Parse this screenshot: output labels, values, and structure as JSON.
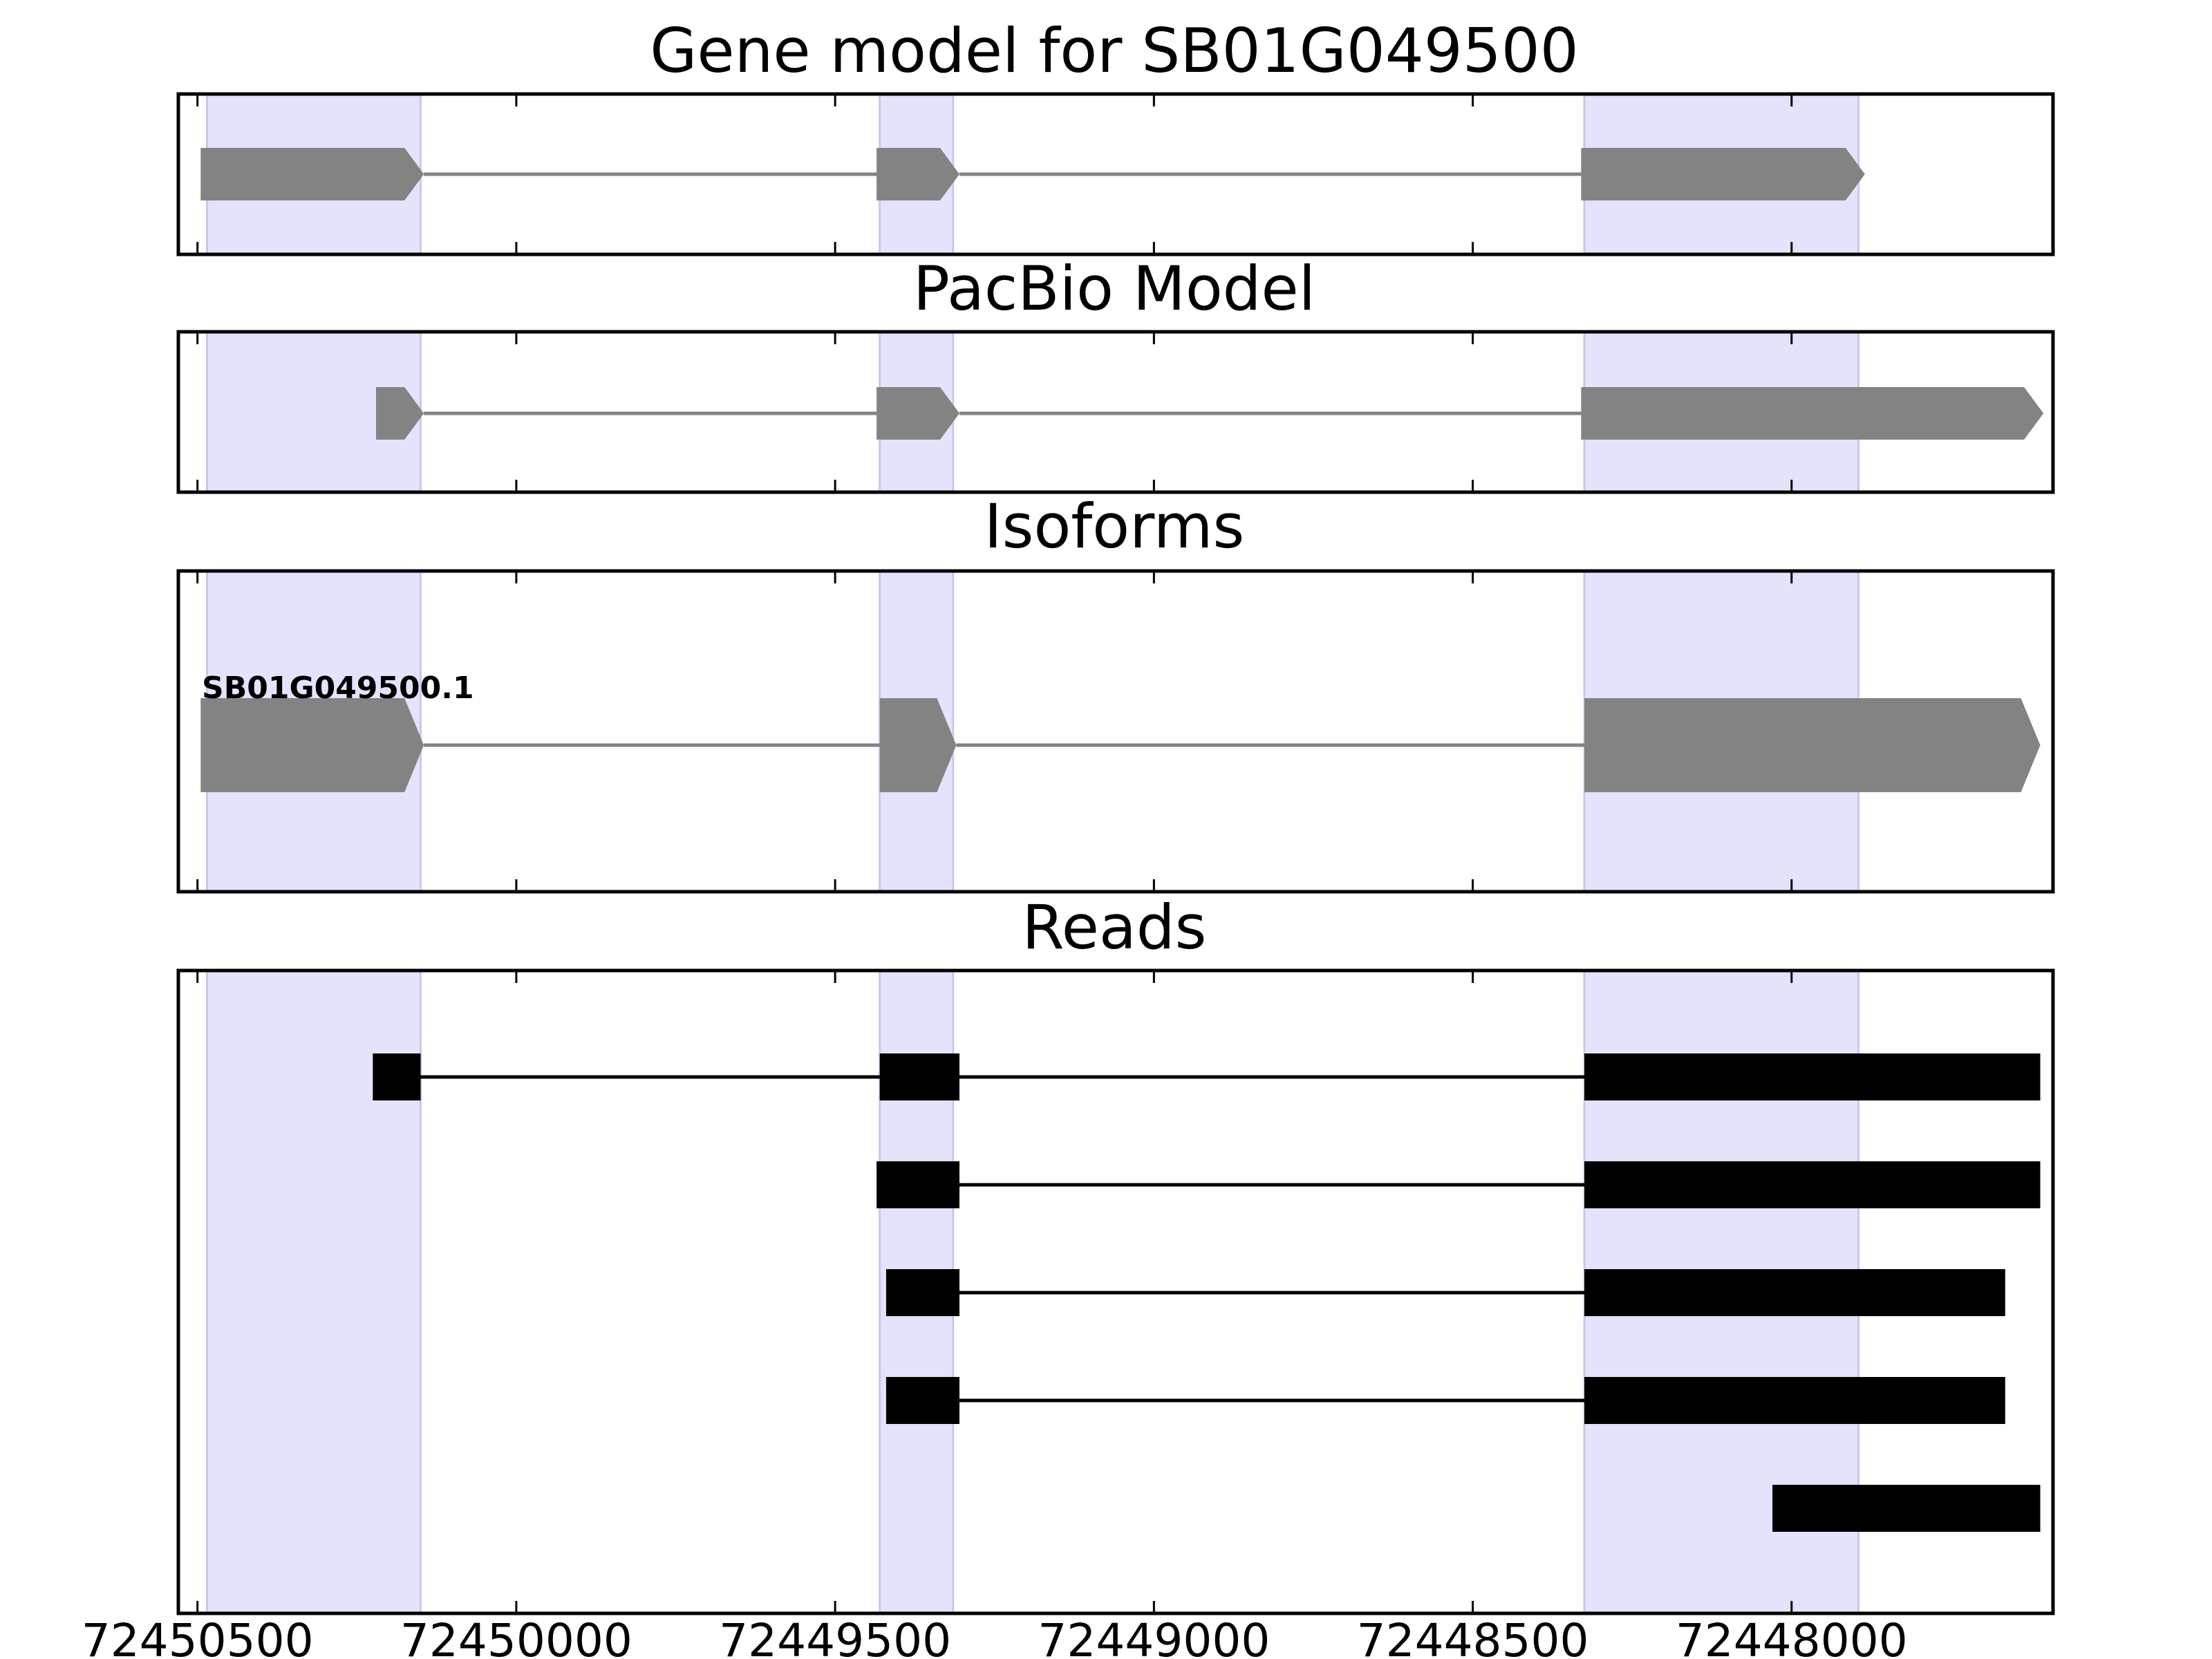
{
  "chart_data": {
    "type": "gene-structure",
    "x_axis": {
      "reversed": true,
      "range": [
        72450530,
        72447590
      ],
      "ticks": [
        72450500,
        72450000,
        72449500,
        72449000,
        72448500,
        72448000
      ],
      "tick_labels": [
        "72450500",
        "72450000",
        "72449500",
        "72449000",
        "72448500",
        "72448000"
      ]
    },
    "highlight_regions": [
      [
        72450485,
        72450150
      ],
      [
        72449430,
        72449315
      ],
      [
        72448325,
        72447895
      ]
    ],
    "panels": [
      {
        "id": "gene-model",
        "title": "Gene model for SB01G049500",
        "style": "arrow",
        "color": "#838383",
        "tracks": [
          {
            "exons": [
              [
                72450495,
                72450145
              ],
              [
                72449435,
                72449305
              ],
              [
                72448330,
                72447885
              ]
            ]
          }
        ]
      },
      {
        "id": "pacbio-model",
        "title": "PacBio Model",
        "style": "arrow",
        "color": "#838383",
        "tracks": [
          {
            "exons": [
              [
                72450220,
                72450145
              ],
              [
                72449435,
                72449305
              ],
              [
                72448330,
                72447605
              ]
            ]
          }
        ]
      },
      {
        "id": "isoforms",
        "title": "Isoforms",
        "style": "arrow",
        "color": "#838383",
        "tracks": [
          {
            "label": "SB01G049500.1",
            "exons": [
              [
                72450495,
                72450145
              ],
              [
                72449430,
                72449310
              ],
              [
                72448325,
                72447610
              ]
            ]
          }
        ]
      },
      {
        "id": "reads",
        "title": "Reads",
        "style": "block",
        "color": "#000000",
        "tracks": [
          {
            "exons": [
              [
                72450225,
                72450150
              ],
              [
                72449430,
                72449305
              ],
              [
                72448325,
                72447610
              ]
            ]
          },
          {
            "exons": [
              [
                72449435,
                72449305
              ],
              [
                72448325,
                72447610
              ]
            ]
          },
          {
            "exons": [
              [
                72449420,
                72449305
              ],
              [
                72448325,
                72447665
              ]
            ]
          },
          {
            "exons": [
              [
                72449420,
                72449305
              ],
              [
                72448325,
                72447665
              ]
            ]
          },
          {
            "exons": [
              [
                72448030,
                72447610
              ]
            ]
          }
        ]
      }
    ]
  }
}
